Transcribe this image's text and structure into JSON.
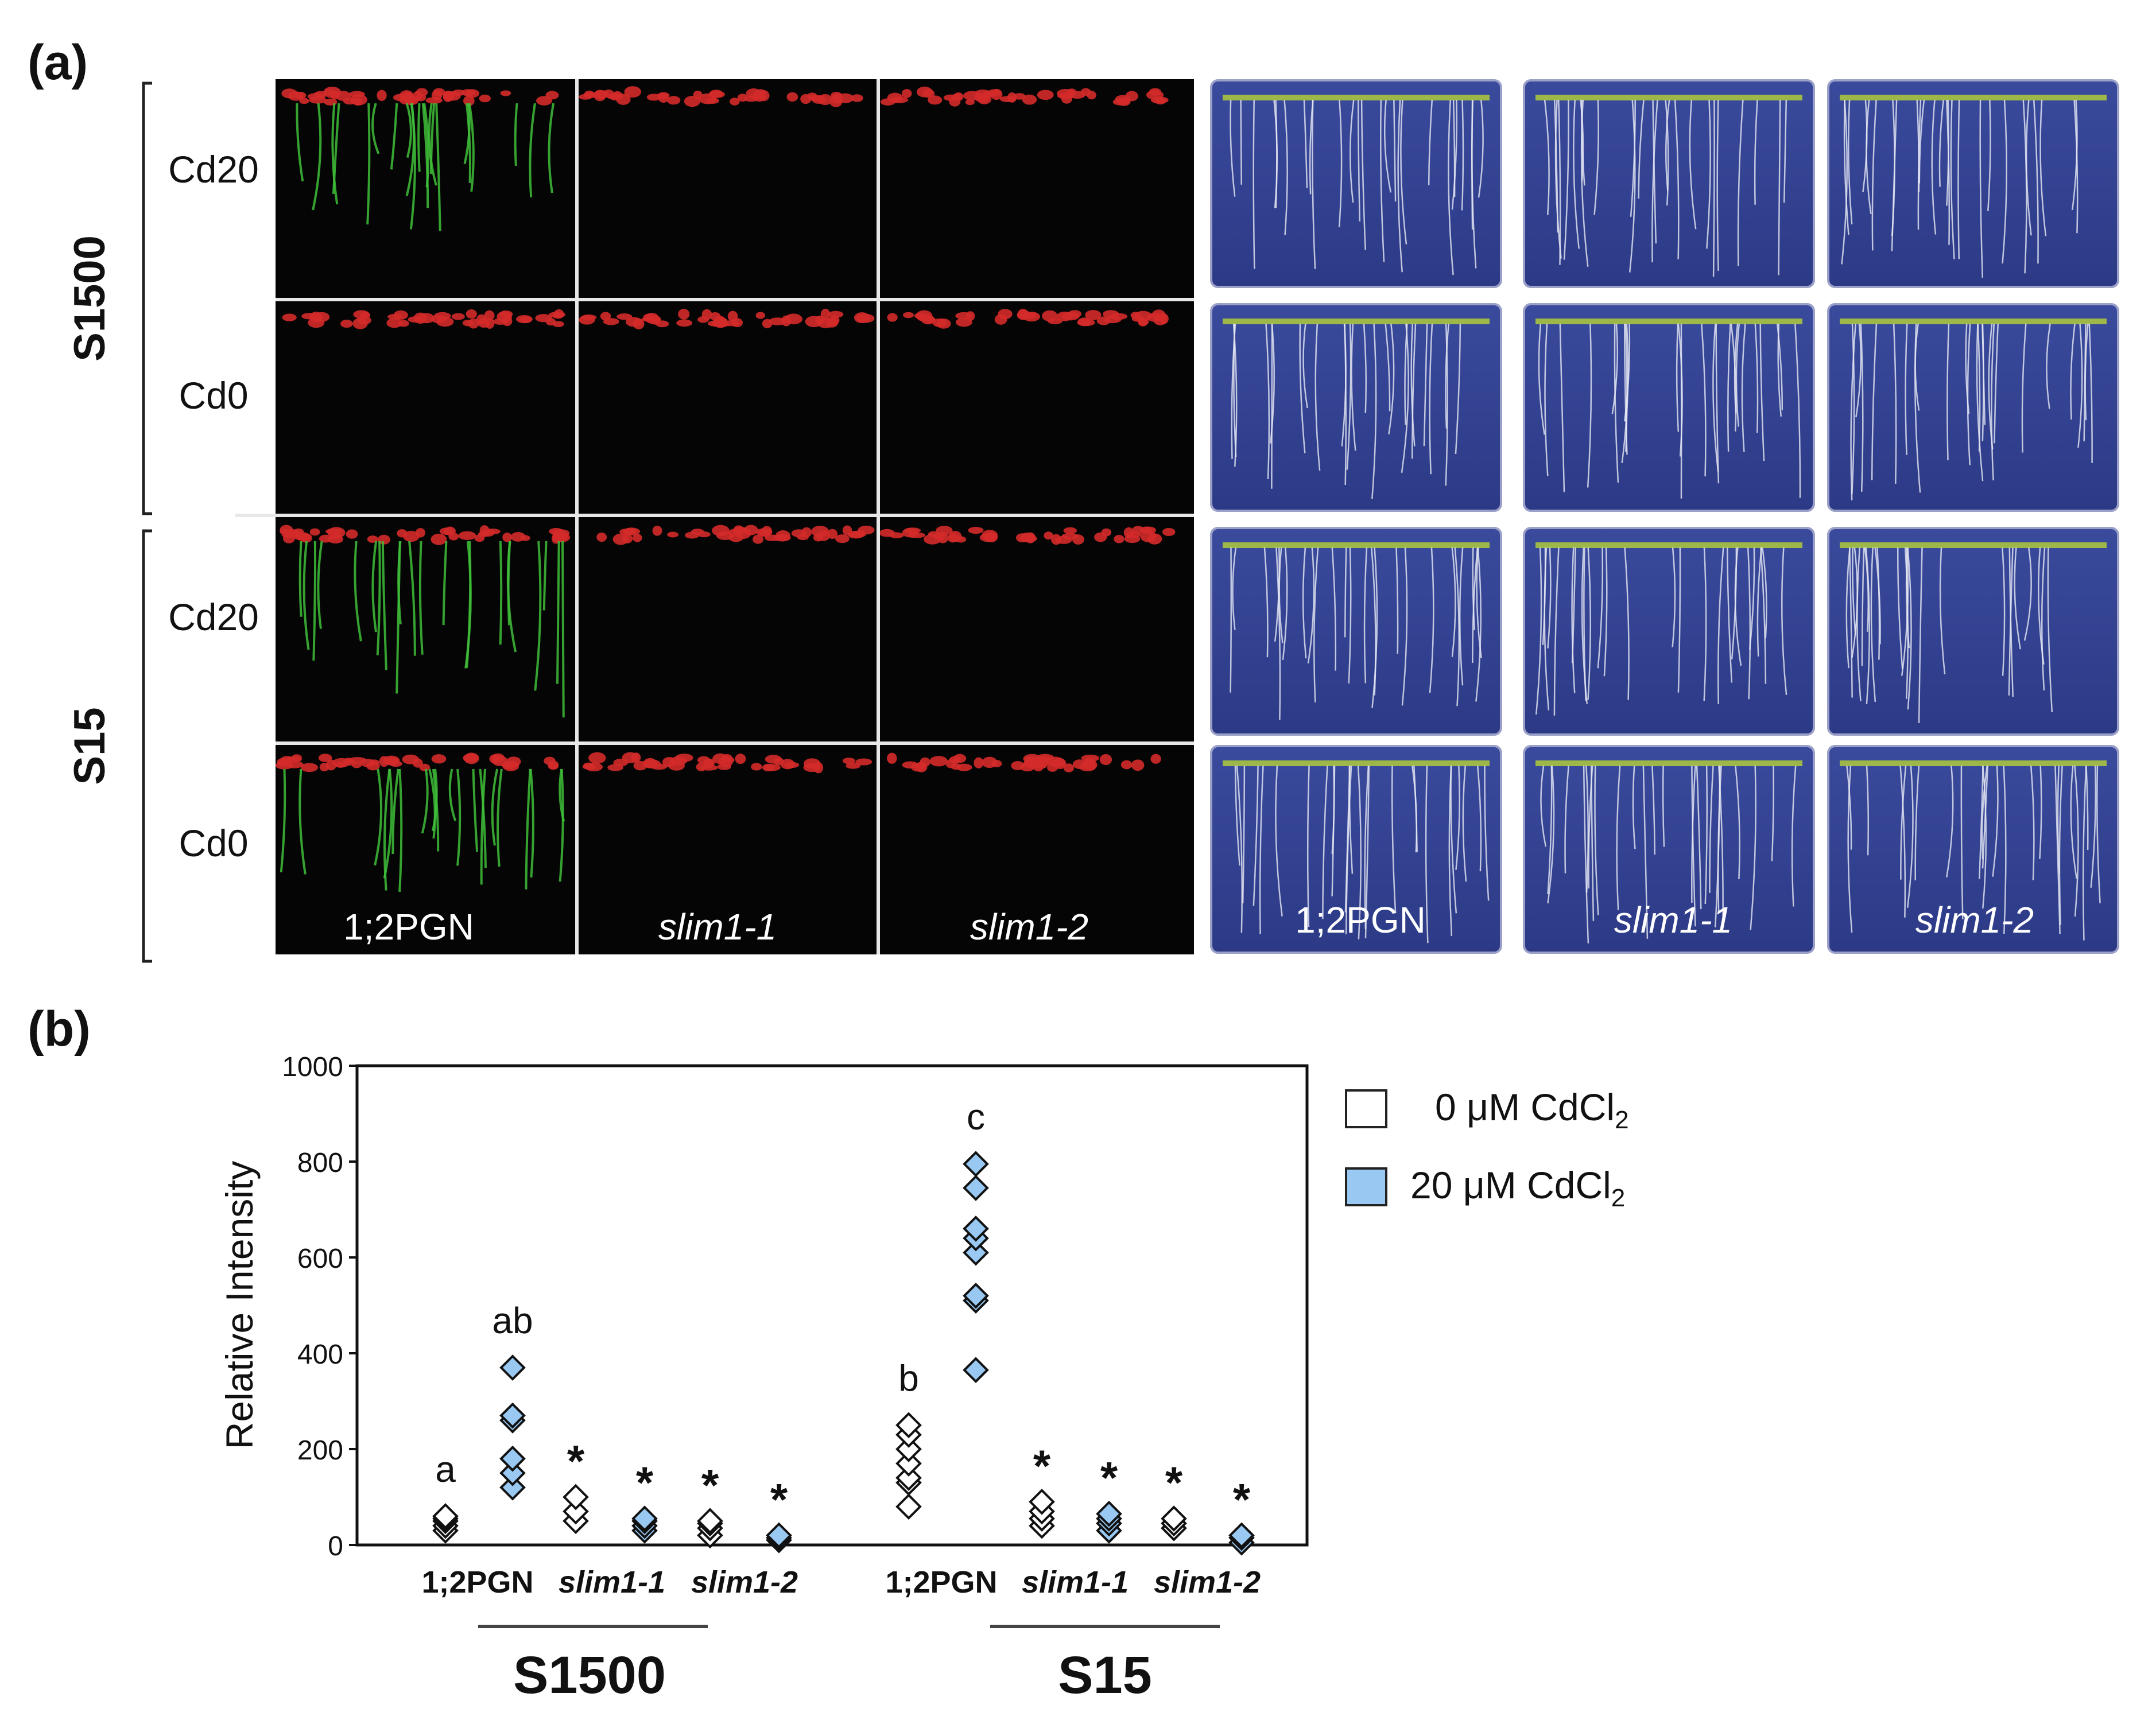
{
  "panel_a": {
    "label": "(a)",
    "groups": [
      {
        "name": "S1500",
        "rows": [
          "Cd20",
          "Cd0"
        ]
      },
      {
        "name": "S15",
        "rows": [
          "Cd20",
          "Cd0"
        ]
      }
    ],
    "genotypes_fluor": [
      "1;2PGN",
      "slim1-1",
      "slim1-2"
    ],
    "genotypes_plate": [
      "1;2PGN",
      "slim1-1",
      "slim1-2"
    ]
  },
  "panel_b": {
    "label": "(b)",
    "legend": {
      "zero": {
        "prefix": "0 μM CdCl",
        "sub": "2",
        "color": "#ffffff"
      },
      "twenty": {
        "prefix": "20 μM CdCl",
        "sub": "2",
        "color": "#99c9f2"
      }
    }
  },
  "chart_data": {
    "type": "scatter",
    "ylabel": "Relative Intensity",
    "ylim": [
      0,
      1000
    ],
    "yticks": [
      0,
      200,
      400,
      600,
      800,
      1000
    ],
    "groups": [
      "S1500",
      "S15"
    ],
    "genotypes": [
      "1;2PGN",
      "slim1-1",
      "slim1-2"
    ],
    "series": [
      {
        "name": "0 μM CdCl2",
        "color": "#ffffff"
      },
      {
        "name": "20 μM CdCl2",
        "color": "#99c9f2"
      }
    ],
    "points": [
      {
        "group": "S1500",
        "genotype": "1;2PGN",
        "series": "0 μM CdCl2",
        "values": [
          30,
          40,
          50,
          55,
          60
        ],
        "label": "a"
      },
      {
        "group": "S1500",
        "genotype": "1;2PGN",
        "series": "20 μM CdCl2",
        "values": [
          120,
          150,
          180,
          260,
          270,
          370
        ],
        "label": "ab"
      },
      {
        "group": "S1500",
        "genotype": "slim1-1",
        "series": "0 μM CdCl2",
        "values": [
          50,
          70,
          100
        ],
        "label": "*"
      },
      {
        "group": "S1500",
        "genotype": "slim1-1",
        "series": "20 μM CdCl2",
        "values": [
          30,
          40,
          50,
          55
        ],
        "label": "*"
      },
      {
        "group": "S1500",
        "genotype": "slim1-2",
        "series": "0 μM CdCl2",
        "values": [
          20,
          35,
          45,
          50
        ],
        "label": "*"
      },
      {
        "group": "S1500",
        "genotype": "slim1-2",
        "series": "20 μM CdCl2",
        "values": [
          10,
          15,
          20
        ],
        "label": "*"
      },
      {
        "group": "S15",
        "genotype": "1;2PGN",
        "series": "0 μM CdCl2",
        "values": [
          80,
          130,
          140,
          170,
          200,
          230,
          250
        ],
        "label": "b"
      },
      {
        "group": "S15",
        "genotype": "1;2PGN",
        "series": "20 μM CdCl2",
        "values": [
          365,
          510,
          520,
          610,
          640,
          660,
          745,
          795
        ],
        "label": "c"
      },
      {
        "group": "S15",
        "genotype": "slim1-1",
        "series": "0 μM CdCl2",
        "values": [
          40,
          55,
          70,
          90
        ],
        "label": "*"
      },
      {
        "group": "S15",
        "genotype": "slim1-1",
        "series": "20 μM CdCl2",
        "values": [
          30,
          45,
          55,
          65
        ],
        "label": "*"
      },
      {
        "group": "S15",
        "genotype": "slim1-2",
        "series": "0 μM CdCl2",
        "values": [
          35,
          45,
          55
        ],
        "label": "*"
      },
      {
        "group": "S15",
        "genotype": "slim1-2",
        "series": "20 μM CdCl2",
        "values": [
          5,
          15,
          20
        ],
        "label": "*"
      }
    ]
  }
}
